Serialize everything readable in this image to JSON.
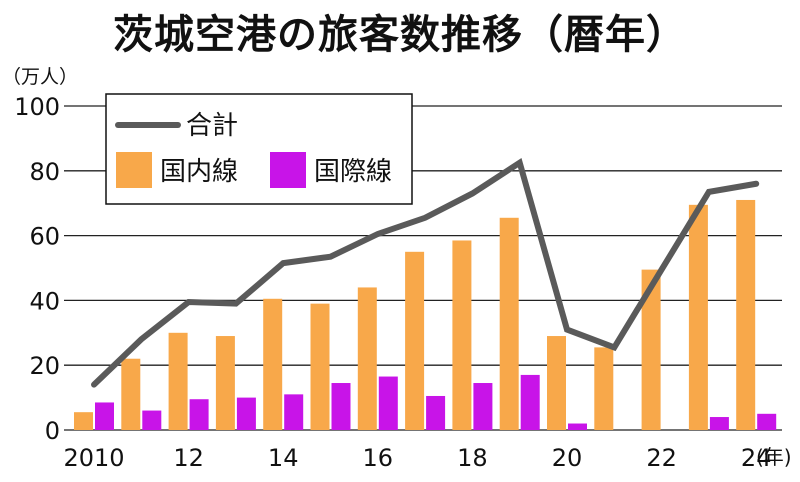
{
  "title": "茨城空港の旅客数推移（暦年）",
  "chart_data": {
    "type": "bar",
    "title": "茨城空港の旅客数推移（暦年）",
    "unit_label": "（万人）",
    "x_unit": "(年)",
    "years": [
      2010,
      2011,
      2012,
      2013,
      2014,
      2015,
      2016,
      2017,
      2018,
      2019,
      2020,
      2021,
      2022,
      2023,
      2024
    ],
    "x_tick_labels": [
      {
        "year": 2010,
        "label": "2010"
      },
      {
        "year": 2012,
        "label": "12"
      },
      {
        "year": 2014,
        "label": "14"
      },
      {
        "year": 2016,
        "label": "16"
      },
      {
        "year": 2018,
        "label": "18"
      },
      {
        "year": 2020,
        "label": "20"
      },
      {
        "year": 2022,
        "label": "22"
      },
      {
        "year": 2024,
        "label": "24"
      }
    ],
    "ylim": [
      0,
      100
    ],
    "yticks": [
      0,
      20,
      40,
      60,
      80,
      100
    ],
    "grid": true,
    "legend_position": "top-left",
    "series": [
      {
        "name": "国内線",
        "kind": "bar",
        "color": "#F8A84A",
        "values": [
          5.5,
          22,
          30,
          29,
          40.5,
          39,
          44,
          55,
          58.5,
          65.5,
          29,
          25.5,
          49.5,
          69.5,
          71
        ]
      },
      {
        "name": "国際線",
        "kind": "bar",
        "color": "#C814E8",
        "values": [
          8.5,
          6,
          9.5,
          10,
          11,
          14.5,
          16.5,
          10.5,
          14.5,
          17,
          2,
          0,
          0,
          4,
          5
        ]
      },
      {
        "name": "合計",
        "kind": "line",
        "color": "#5a5a5a",
        "values": [
          14,
          28,
          39.5,
          39,
          51.5,
          53.5,
          60.5,
          65.5,
          73,
          82.5,
          31,
          25.5,
          49.5,
          73.5,
          76
        ]
      }
    ]
  }
}
